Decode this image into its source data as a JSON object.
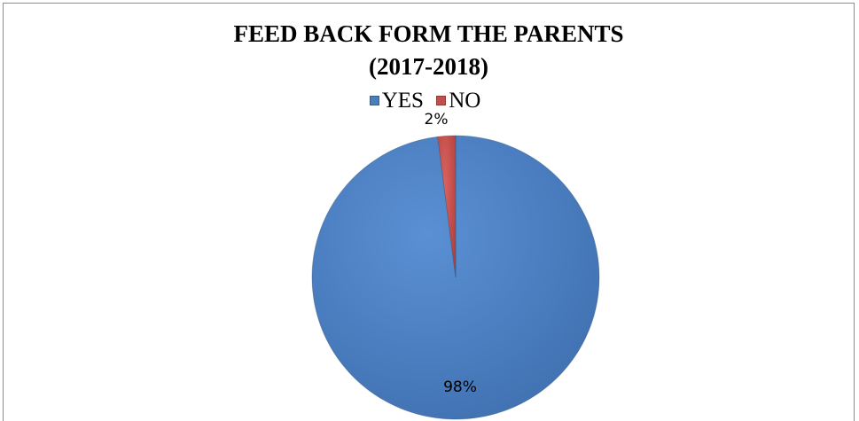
{
  "chart_data": {
    "type": "pie",
    "title_line1": "FEED BACK FORM THE PARENTS",
    "title_line2": "(2017-2018)",
    "categories": [
      "YES",
      "NO"
    ],
    "values": [
      98,
      2
    ],
    "labels": [
      "98%",
      "2%"
    ],
    "colors": [
      "#4a7ebb",
      "#c0504d"
    ],
    "legend": "top"
  }
}
